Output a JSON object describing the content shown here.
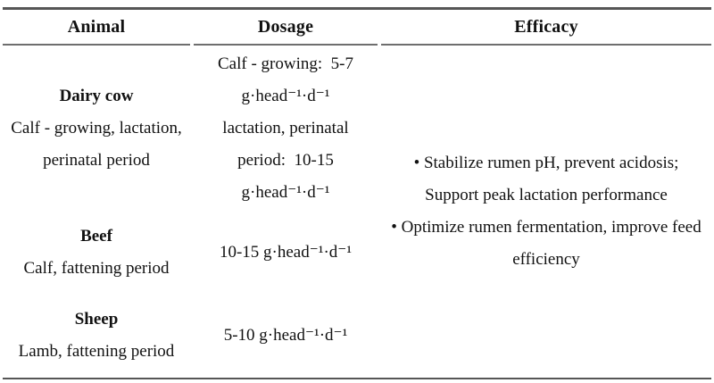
{
  "table": {
    "header": {
      "animal": "Animal",
      "dosage": "Dosage",
      "efficacy": "Efficacy"
    },
    "rows": [
      {
        "animal": "Dairy cow",
        "animal_details": [
          "Calf - growing, lactation,",
          "perinatal period"
        ],
        "dosage_lines": [
          "Calf - growing:  5-7",
          "g·head⁻¹·d⁻¹",
          "lactation, perinatal",
          "period:  10-15",
          "g·head⁻¹·d⁻¹"
        ]
      },
      {
        "animal": "Beef",
        "animal_details": [
          "Calf, fattening period"
        ],
        "dosage_lines": [
          "10-15 g·head⁻¹·d⁻¹"
        ]
      },
      {
        "animal": "Sheep",
        "animal_details": [
          "Lamb, fattening period"
        ],
        "dosage_lines": [
          "5-10 g·head⁻¹·d⁻¹"
        ]
      }
    ],
    "efficacy_lines": [
      "• Stabilize rumen pH, prevent acidosis;",
      "Support peak lactation performance",
      "• Optimize rumen fermentation, improve feed",
      "efficiency"
    ],
    "colors": {
      "text": "#111111",
      "rule_heavy": "#565656",
      "rule_light": "#6e6e6e",
      "background": "#ffffff"
    }
  }
}
